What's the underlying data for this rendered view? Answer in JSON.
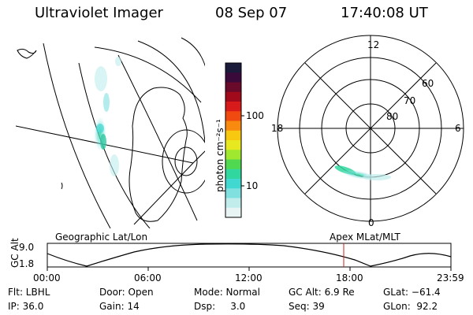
{
  "header": {
    "title": "Ultraviolet Imager",
    "date": "08 Sep 07",
    "time": "17:40:08 UT"
  },
  "colorbar": {
    "unit_label": "photon cm⁻²s⁻¹",
    "tick_labels": [
      "100",
      "10"
    ],
    "colors": [
      "#1a1a3a",
      "#3a0a3a",
      "#6a0a2a",
      "#a00a1a",
      "#d81a1a",
      "#f04a10",
      "#f88a10",
      "#f8c810",
      "#e8e820",
      "#a0e830",
      "#50d850",
      "#30d8a0",
      "#40d8d0",
      "#80e0e0",
      "#c0ecec",
      "#e8f4f4"
    ]
  },
  "polar_plot": {
    "mlt_labels": {
      "top": "12",
      "left": "18",
      "right": "6",
      "bottom": "0"
    },
    "lat_labels": [
      "60",
      "70",
      "80"
    ]
  },
  "panels": {
    "left_caption": "Geographic Lat/Lon",
    "right_caption": "Apex MLat/MLT"
  },
  "timeline": {
    "axis_label": "GC Alt",
    "y_ticks": [
      "9.0",
      "1.8"
    ],
    "x_ticks": [
      "00:00",
      "06:00",
      "12:00",
      "18:00",
      "23:59"
    ],
    "current_marker_color": "#cc2222"
  },
  "footer": {
    "rows": [
      [
        "Flt: LBHL",
        "Door: Open",
        "Mode: Normal",
        "GC Alt: 6.9 Re",
        "GLat: −61.4"
      ],
      [
        "IP: 36.0",
        "Gain: 14",
        "Dsp:     3.0",
        "Seq: 39",
        "GLon:  92.2"
      ]
    ]
  }
}
